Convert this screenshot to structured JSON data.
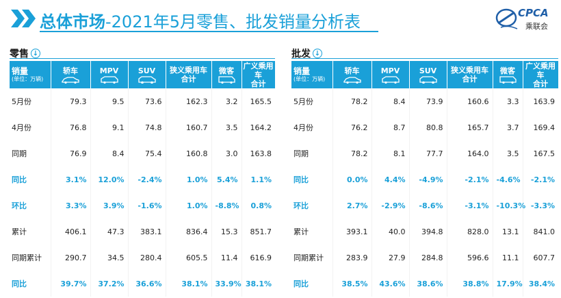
{
  "header": {
    "title_bold": "总体市场",
    "title_rest": "-2021年5月零售、批发销量分析表",
    "logo_text": "CPCA",
    "logo_sub": "乘联会"
  },
  "colors": {
    "accent": "#1aa0d8"
  },
  "columns": [
    {
      "label": "轿车",
      "icon": "sedan-icon"
    },
    {
      "label": "MPV",
      "icon": "mpv-icon"
    },
    {
      "label": "SUV",
      "icon": "suv-icon"
    },
    {
      "label": "狭义乘用车\n合计",
      "icon": ""
    },
    {
      "label": "微客",
      "icon": "minivan-icon"
    },
    {
      "label": "广义乘用车\n合计",
      "icon": ""
    }
  ],
  "row_header": {
    "title": "销量",
    "unit": "(单位：万辆)"
  },
  "retail": {
    "label": "零售",
    "rows": [
      {
        "label": "5月份",
        "values": [
          "79.3",
          "9.5",
          "73.6",
          "162.3",
          "3.2",
          "165.5"
        ],
        "highlight": false
      },
      {
        "label": "4月份",
        "values": [
          "76.8",
          "9.1",
          "74.8",
          "160.7",
          "3.5",
          "164.2"
        ],
        "highlight": false
      },
      {
        "label": "同期",
        "values": [
          "76.9",
          "8.4",
          "75.4",
          "160.8",
          "3.0",
          "163.8"
        ],
        "highlight": false
      },
      {
        "label": "同比",
        "values": [
          "3.1%",
          "12.0%",
          "-2.4%",
          "1.0%",
          "5.4%",
          "1.1%"
        ],
        "highlight": true
      },
      {
        "label": "环比",
        "values": [
          "3.3%",
          "3.9%",
          "-1.6%",
          "1.0%",
          "-8.8%",
          "0.8%"
        ],
        "highlight": true
      },
      {
        "label": "累计",
        "values": [
          "406.1",
          "47.3",
          "383.1",
          "836.4",
          "15.3",
          "851.7"
        ],
        "highlight": false
      },
      {
        "label": "同期累计",
        "values": [
          "290.7",
          "34.5",
          "280.4",
          "605.5",
          "11.4",
          "616.9"
        ],
        "highlight": false
      },
      {
        "label": "同比",
        "values": [
          "39.7%",
          "37.2%",
          "36.6%",
          "38.1%",
          "33.9%",
          "38.1%"
        ],
        "highlight": true
      }
    ]
  },
  "wholesale": {
    "label": "批发",
    "rows": [
      {
        "label": "5月份",
        "values": [
          "78.2",
          "8.4",
          "73.9",
          "160.6",
          "3.3",
          "163.9"
        ],
        "highlight": false
      },
      {
        "label": "4月份",
        "values": [
          "76.2",
          "8.7",
          "80.8",
          "165.7",
          "3.7",
          "169.4"
        ],
        "highlight": false
      },
      {
        "label": "同期",
        "values": [
          "78.2",
          "8.1",
          "77.7",
          "164.0",
          "3.5",
          "167.5"
        ],
        "highlight": false
      },
      {
        "label": "同比",
        "values": [
          "0.0%",
          "4.4%",
          "-4.9%",
          "-2.1%",
          "-4.6%",
          "-2.1%"
        ],
        "highlight": true
      },
      {
        "label": "环比",
        "values": [
          "2.7%",
          "-2.9%",
          "-8.6%",
          "-3.1%",
          "-10.3%",
          "-3.3%"
        ],
        "highlight": true
      },
      {
        "label": "累计",
        "values": [
          "393.1",
          "40.0",
          "394.8",
          "828.0",
          "13.1",
          "841.0"
        ],
        "highlight": false
      },
      {
        "label": "同期累计",
        "values": [
          "283.9",
          "27.9",
          "284.8",
          "596.6",
          "11.1",
          "607.7"
        ],
        "highlight": false
      },
      {
        "label": "同比",
        "values": [
          "38.5%",
          "43.6%",
          "38.6%",
          "38.8%",
          "17.9%",
          "38.4%"
        ],
        "highlight": true
      }
    ]
  }
}
